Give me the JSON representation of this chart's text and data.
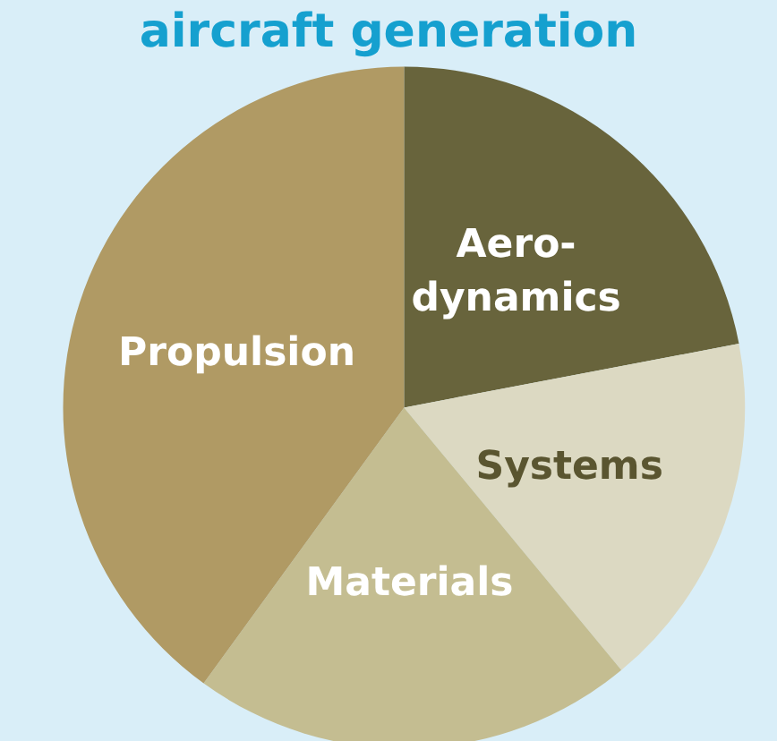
{
  "chart_data": {
    "type": "pie",
    "title": "aircraft generation",
    "categories": [
      "Aero-\ndynamics",
      "Systems",
      "Materials",
      "Propulsion"
    ],
    "values": [
      22,
      17,
      21,
      40
    ],
    "colors": [
      "#68643c",
      "#dcd9c2",
      "#c4bd91",
      "#b09a64"
    ]
  }
}
